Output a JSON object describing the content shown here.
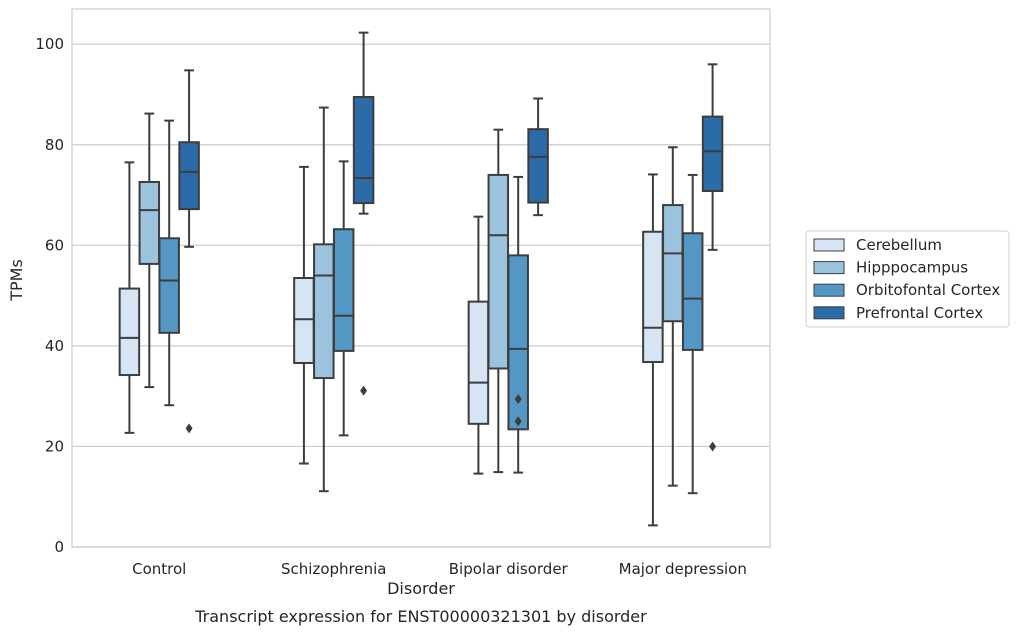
{
  "chart_data": {
    "type": "box",
    "caption": "Transcript expression for ENST00000321301 by disorder",
    "xlabel": "Disorder",
    "ylabel": "TPMs",
    "ylim": [
      0,
      107
    ],
    "yticks": [
      0,
      20,
      40,
      60,
      80,
      100
    ],
    "grid": "horizontal",
    "legend_placement": "right",
    "categories": [
      "Control",
      "Schizophrenia",
      "Bipolar disorder",
      "Major depression"
    ],
    "series": [
      {
        "name": "Cerebellum",
        "color": "#d6e5f3",
        "boxes": [
          {
            "whisker_low": 22.7,
            "q1": 34.2,
            "median": 41.6,
            "q3": 51.4,
            "whisker_high": 76.5,
            "outliers": []
          },
          {
            "whisker_low": 16.6,
            "q1": 36.6,
            "median": 45.3,
            "q3": 53.5,
            "whisker_high": 75.6,
            "outliers": []
          },
          {
            "whisker_low": 14.6,
            "q1": 24.5,
            "median": 32.7,
            "q3": 48.8,
            "whisker_high": 65.7,
            "outliers": []
          },
          {
            "whisker_low": 4.3,
            "q1": 36.8,
            "median": 43.6,
            "q3": 62.7,
            "whisker_high": 74.1,
            "outliers": []
          }
        ]
      },
      {
        "name": "Hipppocampus",
        "color": "#9cc3de",
        "boxes": [
          {
            "whisker_low": 31.8,
            "q1": 56.3,
            "median": 67.0,
            "q3": 72.6,
            "whisker_high": 86.2,
            "outliers": []
          },
          {
            "whisker_low": 11.1,
            "q1": 33.6,
            "median": 54.0,
            "q3": 60.2,
            "whisker_high": 87.4,
            "outliers": []
          },
          {
            "whisker_low": 14.9,
            "q1": 35.5,
            "median": 62.0,
            "q3": 74.0,
            "whisker_high": 83.0,
            "outliers": []
          },
          {
            "whisker_low": 12.2,
            "q1": 44.9,
            "median": 58.4,
            "q3": 68.0,
            "whisker_high": 79.5,
            "outliers": []
          }
        ]
      },
      {
        "name": "Orbitofontal Cortex",
        "color": "#5597c4",
        "boxes": [
          {
            "whisker_low": 28.2,
            "q1": 42.6,
            "median": 53.0,
            "q3": 61.4,
            "whisker_high": 84.8,
            "outliers": []
          },
          {
            "whisker_low": 22.2,
            "q1": 39.0,
            "median": 46.0,
            "q3": 63.2,
            "whisker_high": 76.7,
            "outliers": []
          },
          {
            "whisker_low": 14.8,
            "q1": 23.4,
            "median": 39.4,
            "q3": 58.0,
            "whisker_high": 73.6,
            "outliers": [
              25.0,
              29.4
            ]
          },
          {
            "whisker_low": 10.7,
            "q1": 39.2,
            "median": 49.4,
            "q3": 62.4,
            "whisker_high": 74.0,
            "outliers": []
          }
        ]
      },
      {
        "name": "Prefrontal Cortex",
        "color": "#2b6ba8",
        "boxes": [
          {
            "whisker_low": 59.7,
            "q1": 67.2,
            "median": 74.6,
            "q3": 80.5,
            "whisker_high": 94.8,
            "outliers": [
              23.6
            ]
          },
          {
            "whisker_low": 66.3,
            "q1": 68.4,
            "median": 73.4,
            "q3": 89.5,
            "whisker_high": 102.3,
            "outliers": [
              31.1
            ]
          },
          {
            "whisker_low": 66.0,
            "q1": 68.5,
            "median": 77.6,
            "q3": 83.1,
            "whisker_high": 89.2,
            "outliers": []
          },
          {
            "whisker_low": 59.1,
            "q1": 70.8,
            "median": 78.7,
            "q3": 85.6,
            "whisker_high": 96.0,
            "outliers": [
              20.0
            ]
          }
        ]
      }
    ]
  }
}
